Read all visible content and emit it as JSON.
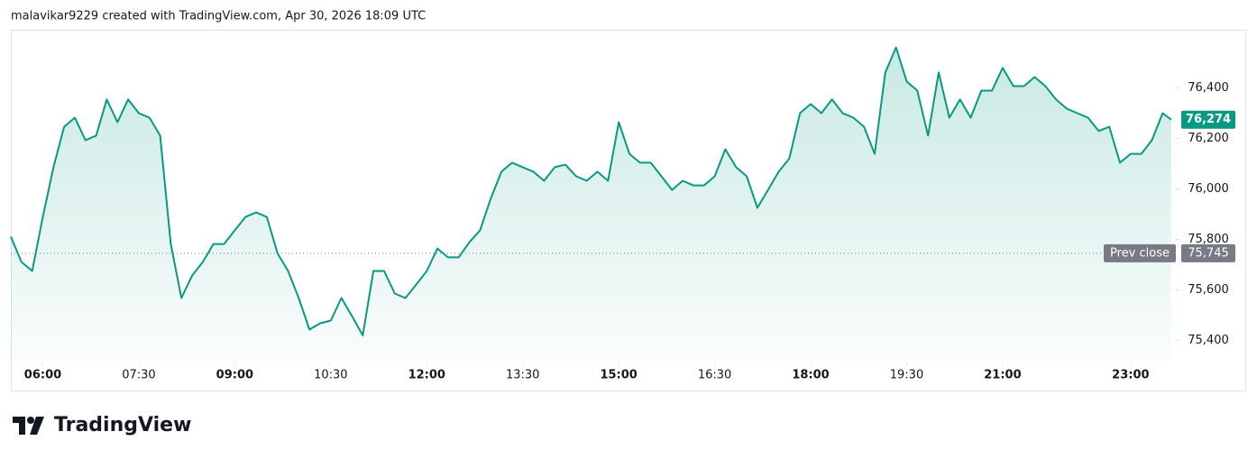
{
  "header": "malavikar9229 created with TradingView.com, Apr 30, 2026 18:09 UTC",
  "brand": "TradingView",
  "chart_data": {
    "type": "area",
    "color": "#089981",
    "x": [
      "05:30",
      "05:40",
      "05:50",
      "06:00",
      "06:10",
      "06:20",
      "06:30",
      "06:40",
      "06:50",
      "07:00",
      "07:10",
      "07:20",
      "07:30",
      "07:40",
      "07:50",
      "08:00",
      "08:10",
      "08:20",
      "08:30",
      "08:40",
      "08:50",
      "09:00",
      "09:10",
      "09:20",
      "09:30",
      "09:40",
      "09:50",
      "10:00",
      "10:10",
      "10:20",
      "10:30",
      "10:40",
      "10:50",
      "11:00",
      "11:10",
      "11:20",
      "11:30",
      "11:40",
      "11:50",
      "12:00",
      "12:10",
      "12:20",
      "12:30",
      "12:40",
      "12:50",
      "13:00",
      "13:10",
      "13:20",
      "13:30",
      "13:40",
      "13:50",
      "14:00",
      "14:10",
      "14:20",
      "14:30",
      "14:40",
      "14:50",
      "15:00",
      "15:10",
      "15:20",
      "15:30",
      "15:40",
      "15:50",
      "16:00",
      "16:10",
      "16:20",
      "16:30",
      "16:40",
      "16:50",
      "17:00",
      "17:10",
      "17:20",
      "17:30",
      "17:40",
      "17:50",
      "18:00",
      "18:10",
      "18:20",
      "18:30",
      "18:40",
      "18:50",
      "19:00",
      "19:10",
      "19:20",
      "19:30",
      "19:40",
      "19:50",
      "20:00",
      "20:10",
      "20:20",
      "20:30",
      "20:40",
      "20:50",
      "21:00",
      "21:10",
      "21:20",
      "21:30",
      "21:40",
      "21:50",
      "22:00",
      "22:10",
      "22:20",
      "22:30",
      "22:40",
      "22:50",
      "23:00",
      "23:10",
      "23:20",
      "23:30",
      "23:38"
    ],
    "values": [
      75811,
      75711,
      75675,
      75889,
      76086,
      76246,
      76282,
      76193,
      76211,
      76354,
      76264,
      76354,
      76300,
      76282,
      76211,
      75782,
      75568,
      75657,
      75711,
      75782,
      75782,
      75836,
      75889,
      75907,
      75889,
      75746,
      75675,
      75568,
      75443,
      75468,
      75479,
      75568,
      75496,
      75420,
      75675,
      75675,
      75586,
      75568,
      75621,
      75675,
      75764,
      75729,
      75729,
      75789,
      75836,
      75961,
      76068,
      76104,
      76086,
      76068,
      76032,
      76086,
      76096,
      76050,
      76032,
      76068,
      76032,
      76264,
      76139,
      76104,
      76104,
      76050,
      75996,
      76032,
      76014,
      76014,
      76050,
      76157,
      76086,
      76050,
      75925,
      75996,
      76068,
      76121,
      76300,
      76336,
      76300,
      76354,
      76300,
      76282,
      76246,
      76139,
      76461,
      76560,
      76425,
      76389,
      76211,
      76461,
      76282,
      76354,
      76282,
      76389,
      76389,
      76479,
      76407,
      76407,
      76443,
      76407,
      76354,
      76318,
      76300,
      76282,
      76229,
      76246,
      76104,
      76139,
      76139,
      76193,
      76300,
      76274
    ],
    "xlim": [
      "05:30",
      "23:39"
    ],
    "xticks": [
      "06:00",
      "07:30",
      "09:00",
      "10:30",
      "12:00",
      "13:30",
      "15:00",
      "16:30",
      "18:00",
      "19:30",
      "21:00",
      "23:00"
    ],
    "xticks_bold": [
      true,
      false,
      true,
      false,
      true,
      false,
      true,
      false,
      true,
      false,
      true,
      true
    ],
    "ylim": [
      75320,
      76630
    ],
    "yticks": [
      {
        "value": 75400,
        "label": "75,400"
      },
      {
        "value": 75600,
        "label": "75,600"
      },
      {
        "value": 75800,
        "label": "75,800"
      },
      {
        "value": 76000,
        "label": "76,000"
      },
      {
        "value": 76200,
        "label": "76,200"
      },
      {
        "value": 76400,
        "label": "76,400"
      }
    ],
    "last_value": 76274,
    "last_value_label": "76,274",
    "prev_close_text": "Prev close",
    "prev_close": 75745,
    "prev_close_label": "75,745"
  }
}
